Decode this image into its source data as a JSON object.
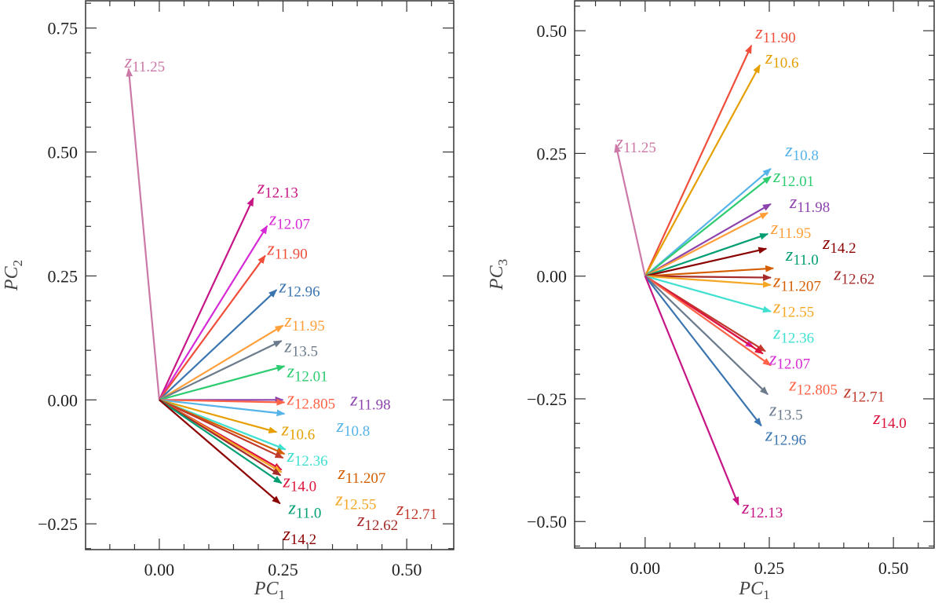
{
  "chart_data": [
    {
      "type": "biplot",
      "xlabel": {
        "base": "PC",
        "sub": "1"
      },
      "ylabel": {
        "base": "PC",
        "sub": "2"
      },
      "xlim": [
        -0.149,
        0.595
      ],
      "ylim": [
        -0.302,
        0.805
      ],
      "xticks": [
        "0.00",
        "0.25",
        "0.50"
      ],
      "xtick_values": [
        0,
        0.25,
        0.5
      ],
      "yticks": [
        "−0.25",
        "0.00",
        "0.25",
        "0.50",
        "0.75"
      ],
      "ytick_values": [
        -0.25,
        0,
        0.25,
        0.5,
        0.75
      ],
      "minor_step": 0.05,
      "label_prefix": "z",
      "vectors": [
        {
          "name": "11.25",
          "x": -0.062,
          "y": 0.668,
          "lx": -0.07,
          "ly": 0.68,
          "color": "#cc79a7"
        },
        {
          "name": "12.13",
          "x": 0.19,
          "y": 0.407,
          "lx": 0.198,
          "ly": 0.426,
          "color": "#c71585"
        },
        {
          "name": "12.07",
          "x": 0.218,
          "y": 0.351,
          "lx": 0.222,
          "ly": 0.362,
          "color": "#d62ad6"
        },
        {
          "name": "11.90",
          "x": 0.214,
          "y": 0.291,
          "lx": 0.218,
          "ly": 0.302,
          "color": "#f04e3a"
        },
        {
          "name": "12.96",
          "x": 0.237,
          "y": 0.222,
          "lx": 0.242,
          "ly": 0.226,
          "color": "#3a75b0"
        },
        {
          "name": "11.95",
          "x": 0.25,
          "y": 0.15,
          "lx": 0.253,
          "ly": 0.157,
          "color": "#ff9f3a"
        },
        {
          "name": "13.5",
          "x": 0.247,
          "y": 0.119,
          "lx": 0.253,
          "ly": 0.122,
          "color": "#6b7b8c"
        },
        {
          "name": "12.01",
          "x": 0.253,
          "y": 0.068,
          "lx": 0.258,
          "ly": 0.074,
          "color": "#2ecc71"
        },
        {
          "name": "11.98",
          "x": 0.25,
          "y": 0.0,
          "lx": 0.386,
          "ly": -0.002,
          "color": "#8e44ad"
        },
        {
          "name": "12.805",
          "x": 0.253,
          "y": -0.005,
          "lx": 0.258,
          "ly": 0.0,
          "color": "#ff6347"
        },
        {
          "name": "10.8",
          "x": 0.253,
          "y": -0.028,
          "lx": 0.358,
          "ly": -0.033,
          "color": "#56b4e9"
        },
        {
          "name": "10.6",
          "x": 0.237,
          "y": -0.065,
          "lx": 0.247,
          "ly": -0.062,
          "color": "#e69f00"
        },
        {
          "name": "12.36",
          "x": 0.255,
          "y": -0.1,
          "lx": 0.258,
          "ly": -0.093,
          "color": "#40e0d0"
        },
        {
          "name": "11.207",
          "x": 0.253,
          "y": -0.109,
          "lx": 0.361,
          "ly": -0.15,
          "color": "#d55e00"
        },
        {
          "name": "12.71",
          "x": 0.25,
          "y": -0.117,
          "lx": 0.479,
          "ly": -0.223,
          "color": "#c0392b"
        },
        {
          "name": "14.0",
          "x": 0.247,
          "y": -0.141,
          "lx": 0.25,
          "ly": -0.138,
          "color": "#dc143c"
        },
        {
          "name": "12.55",
          "x": 0.247,
          "y": -0.146,
          "lx": 0.356,
          "ly": -0.203,
          "color": "#f5a623"
        },
        {
          "name": "12.62",
          "x": 0.245,
          "y": -0.152,
          "lx": 0.4,
          "ly": -0.245,
          "color": "#a52a2a"
        },
        {
          "name": "11.0",
          "x": 0.247,
          "y": -0.168,
          "lx": 0.261,
          "ly": -0.179,
          "color": "#009e73"
        },
        {
          "name": "14.2",
          "x": 0.244,
          "y": -0.209,
          "lx": 0.25,
          "ly": -0.21,
          "color": "#8b0000"
        }
      ]
    },
    {
      "type": "biplot",
      "xlabel": {
        "base": "PC",
        "sub": "1"
      },
      "ylabel": {
        "base": "PC",
        "sub": "3"
      },
      "xlim": [
        -0.142,
        0.582
      ],
      "ylim": [
        -0.554,
        0.561
      ],
      "xticks": [
        "0.00",
        "0.25",
        "0.50"
      ],
      "xtick_values": [
        0,
        0.25,
        0.5
      ],
      "yticks": [
        "−0.50",
        "−0.25",
        "0.00",
        "0.25",
        "0.50"
      ],
      "ytick_values": [
        -0.5,
        -0.25,
        0,
        0.25,
        0.5
      ],
      "minor_step": 0.05,
      "label_prefix": "z",
      "vectors": [
        {
          "name": "11.90",
          "x": 0.214,
          "y": 0.47,
          "lx": 0.222,
          "ly": 0.494,
          "color": "#f04e3a"
        },
        {
          "name": "10.6",
          "x": 0.231,
          "y": 0.43,
          "lx": 0.242,
          "ly": 0.449,
          "color": "#e69f00"
        },
        {
          "name": "11.25",
          "x": -0.059,
          "y": 0.268,
          "lx": -0.059,
          "ly": 0.27,
          "color": "#cc79a7"
        },
        {
          "name": "10.8",
          "x": 0.253,
          "y": 0.219,
          "lx": 0.282,
          "ly": 0.254,
          "color": "#56b4e9"
        },
        {
          "name": "12.01",
          "x": 0.253,
          "y": 0.203,
          "lx": 0.258,
          "ly": 0.214,
          "color": "#2ecc71"
        },
        {
          "name": "11.98",
          "x": 0.253,
          "y": 0.147,
          "lx": 0.291,
          "ly": 0.177,
          "color": "#8e44ad"
        },
        {
          "name": "11.95",
          "x": 0.247,
          "y": 0.129,
          "lx": 0.253,
          "ly": 0.137,
          "color": "#ff9f3a"
        },
        {
          "name": "11.0",
          "x": 0.247,
          "y": 0.086,
          "lx": 0.283,
          "ly": 0.102,
          "color": "#009e73"
        },
        {
          "name": "14.2",
          "x": 0.244,
          "y": 0.056,
          "lx": 0.25,
          "ly": 0.065,
          "color": "#8b0000"
        },
        {
          "name": "11.207",
          "x": 0.258,
          "y": 0.016,
          "lx": 0.258,
          "ly": 0.026,
          "color": "#d55e00"
        },
        {
          "name": "12.62",
          "x": 0.253,
          "y": -0.003,
          "lx": 0.38,
          "ly": 0.002,
          "color": "#a52a2a"
        },
        {
          "name": "12.55",
          "x": 0.253,
          "y": -0.018,
          "lx": 0.258,
          "ly": -0.008,
          "color": "#f5a623"
        },
        {
          "name": "12.36",
          "x": 0.253,
          "y": -0.072,
          "lx": 0.258,
          "ly": -0.067,
          "color": "#40e0d0"
        },
        {
          "name": "12.07",
          "x": 0.218,
          "y": -0.145,
          "lx": 0.25,
          "ly": -0.158,
          "color": "#d62ad6"
        },
        {
          "name": "12.71",
          "x": 0.242,
          "y": -0.153,
          "lx": 0.4,
          "ly": -0.238,
          "color": "#c0392b"
        },
        {
          "name": "14.0",
          "x": 0.237,
          "y": -0.158,
          "lx": 0.459,
          "ly": -0.292,
          "color": "#dc143c"
        },
        {
          "name": "12.805",
          "x": 0.253,
          "y": -0.182,
          "lx": 0.29,
          "ly": -0.201,
          "color": "#ff6347"
        },
        {
          "name": "13.5",
          "x": 0.247,
          "y": -0.241,
          "lx": 0.25,
          "ly": -0.233,
          "color": "#6b7b8c"
        },
        {
          "name": "12.96",
          "x": 0.234,
          "y": -0.305,
          "lx": 0.242,
          "ly": -0.294,
          "color": "#3a75b0"
        },
        {
          "name": "12.13",
          "x": 0.188,
          "y": -0.466,
          "lx": 0.195,
          "ly": -0.474,
          "color": "#c71585"
        }
      ]
    }
  ]
}
